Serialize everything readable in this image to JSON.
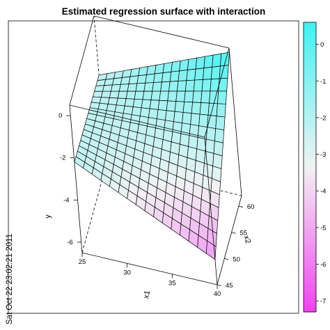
{
  "chart_data": {
    "type": "surface",
    "title": "Estimated regression surface with interaction",
    "xlabel": "x1",
    "ylabel": "y",
    "zlabel": "x2",
    "x1_ticks": [
      "25",
      "30",
      "35",
      "40"
    ],
    "x2_ticks": [
      "45",
      "50",
      "55",
      "60"
    ],
    "y_ticks": [
      "-6",
      "-4",
      "-2",
      "0"
    ],
    "x1_range": [
      25,
      40
    ],
    "x2_range": [
      45,
      62
    ],
    "y_range": [
      -6.5,
      0.5
    ],
    "grid_lines_per_axis": 16,
    "surface_corners": [
      {
        "x1": 25,
        "x2": 62,
        "y": -2.3
      },
      {
        "x1": 25,
        "x2": 45,
        "y": -2.2
      },
      {
        "x1": 40,
        "x2": 45,
        "y": -5.3
      },
      {
        "x1": 40,
        "x2": 62,
        "y": 0.3
      }
    ],
    "colorbar": {
      "ticks": [
        "0",
        "-1",
        "-2",
        "-3",
        "-4",
        "-5",
        "-6",
        "-7"
      ],
      "range": [
        -7.3,
        0.6
      ],
      "color_high": "#3ff2f2",
      "color_low": "#f23ff2",
      "color_mid": "#f2f2f2"
    }
  },
  "timestamp": "Sat Oct 22 23:02:21 2011"
}
